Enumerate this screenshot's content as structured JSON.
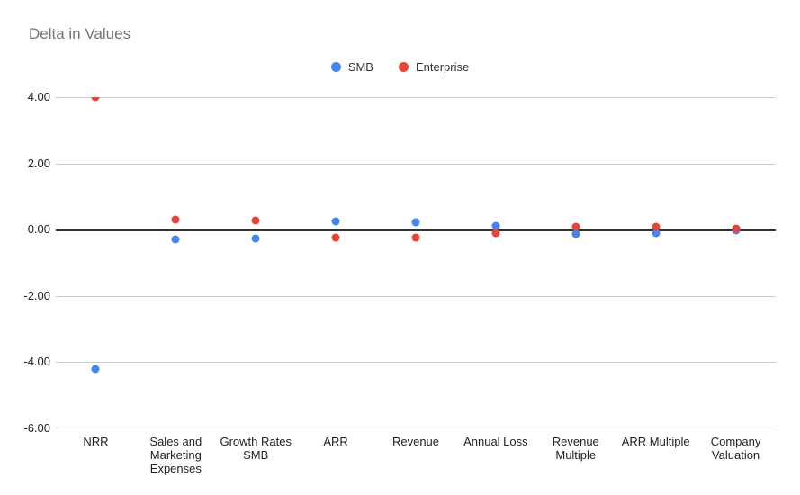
{
  "chart_data": {
    "type": "scatter",
    "title": "Delta in Values",
    "xlabel": "",
    "ylabel": "",
    "categories": [
      "NRR",
      "Sales and Marketing Expenses",
      "Growth Rates SMB",
      "ARR",
      "Revenue",
      "Annual Loss",
      "Revenue Multiple",
      "ARR Multiple",
      "Company Valuation"
    ],
    "series": [
      {
        "name": "SMB",
        "color": "#4285F4",
        "values": [
          -4.2,
          -0.3,
          -0.27,
          0.24,
          0.23,
          0.12,
          -0.12,
          -0.1,
          -0.02
        ]
      },
      {
        "name": "Enterprise",
        "color": "#EA4335",
        "values": [
          4.0,
          0.3,
          0.27,
          -0.25,
          -0.24,
          -0.1,
          0.1,
          0.08,
          0.02
        ]
      }
    ],
    "ylim": [
      -6,
      4
    ],
    "yticks": [
      4,
      2,
      0,
      -2,
      -4,
      -6
    ],
    "ytick_labels": [
      "4.00",
      "2.00",
      "0.00",
      "-2.00",
      "-4.00",
      "-6.00"
    ],
    "grid": true,
    "legend_position": "top"
  },
  "colors": {
    "background": "#ffffff",
    "title_text": "#757575",
    "axis_text": "#222222",
    "gridline": "#cccccc",
    "zero_line": "#333333"
  }
}
